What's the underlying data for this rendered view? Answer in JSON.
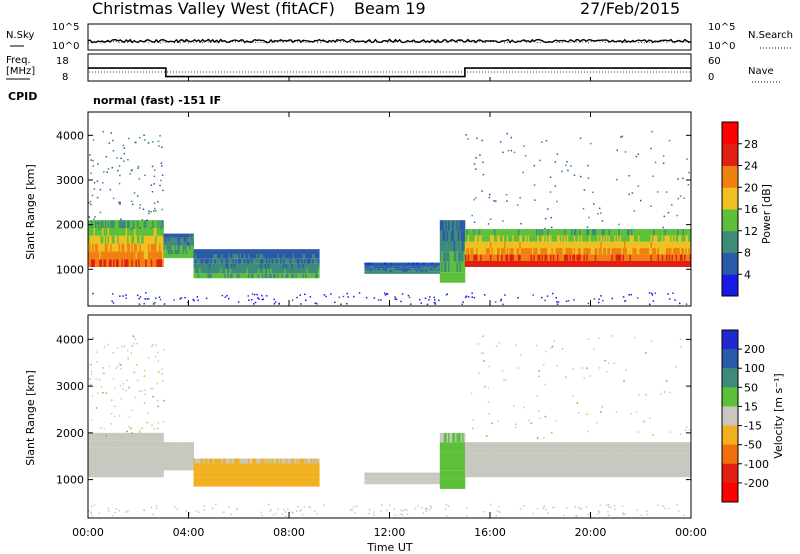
{
  "header": {
    "site": "Christmas Valley West (fitACF)",
    "beam": "Beam 19",
    "date": "27/Feb/2015"
  },
  "noise_panel": {
    "left_label": "N.Sky",
    "right_label": "N.Search",
    "left_ticks": [
      "10^5",
      "10^0"
    ],
    "right_ticks": [
      "10^5",
      "10^0"
    ]
  },
  "freq_panel": {
    "left_label_line1": "Freq.",
    "left_label_line2": "[MHz]",
    "right_label": "Nave",
    "left_ticks": [
      "18",
      "8"
    ],
    "right_ticks": [
      "60",
      "0"
    ]
  },
  "cpid": {
    "label": "CPID",
    "value": "normal (fast) -151 IF"
  },
  "power_panel": {
    "ylabel": "Slant Range [km]",
    "y_ticks": [
      "4000",
      "3000",
      "2000",
      "1000"
    ],
    "colorbar_label": "Power [dB]",
    "colorbar_ticks": [
      "28",
      "24",
      "20",
      "16",
      "12",
      "8",
      "4"
    ],
    "colors": [
      "#1a1ae6",
      "#2a5aa8",
      "#3f8b7a",
      "#5cc03a",
      "#f0c020",
      "#f08010",
      "#e02010",
      "#ff0000"
    ]
  },
  "velocity_panel": {
    "ylabel": "Slant Range [km]",
    "y_ticks": [
      "4000",
      "3000",
      "2000",
      "1000"
    ],
    "colorbar_label": "Velocity [m s⁻¹]",
    "colorbar_ticks": [
      "200",
      "100",
      "50",
      "15",
      "-15",
      "-50",
      "-100",
      "-200"
    ],
    "colors": [
      "#1e2ad0",
      "#2a5aa8",
      "#3f8b7a",
      "#5cc03a",
      "#c8c8c0",
      "#f0b020",
      "#f07010",
      "#e02010",
      "#ff0000"
    ]
  },
  "x_axis": {
    "label": "Time UT",
    "ticks": [
      "00:00",
      "04:00",
      "08:00",
      "12:00",
      "16:00",
      "20:00",
      "00:00"
    ]
  },
  "chart_data": {
    "type": "heatmap",
    "x_range_hours": [
      0,
      24
    ],
    "y_range_km": [
      200,
      4500
    ],
    "power_bands": [
      {
        "t0": 0.0,
        "t1": 3.0,
        "r_low": 1050,
        "r_high": 2100,
        "power": 24
      },
      {
        "t0": 3.0,
        "t1": 4.2,
        "r_low": 1250,
        "r_high": 1800,
        "power": 14
      },
      {
        "t0": 4.2,
        "t1": 9.2,
        "r_low": 800,
        "r_high": 1450,
        "power": 12
      },
      {
        "t0": 11.0,
        "t1": 14.0,
        "r_low": 900,
        "r_high": 1150,
        "power": 10
      },
      {
        "t0": 14.0,
        "t1": 15.0,
        "r_low": 700,
        "r_high": 2100,
        "power": 14
      },
      {
        "t0": 15.0,
        "t1": 24.0,
        "r_low": 1050,
        "r_high": 1900,
        "power": 26
      }
    ],
    "velocity_bands": [
      {
        "t0": 0.0,
        "t1": 3.0,
        "r_low": 1050,
        "r_high": 2000,
        "velocity": 0
      },
      {
        "t0": 3.0,
        "t1": 4.2,
        "r_low": 1200,
        "r_high": 1800,
        "velocity": 0
      },
      {
        "t0": 4.2,
        "t1": 9.2,
        "r_low": 850,
        "r_high": 1450,
        "velocity": -30
      },
      {
        "t0": 11.0,
        "t1": 14.0,
        "r_low": 900,
        "r_high": 1150,
        "velocity": 0
      },
      {
        "t0": 14.0,
        "t1": 15.0,
        "r_low": 800,
        "r_high": 2000,
        "velocity": 30
      },
      {
        "t0": 15.0,
        "t1": 24.0,
        "r_low": 1050,
        "r_high": 1800,
        "velocity": 0
      }
    ],
    "frequency_mhz": [
      {
        "t0": 0.0,
        "t1": 3.1,
        "value": 15
      },
      {
        "t0": 3.1,
        "t1": 15.0,
        "value": 10
      },
      {
        "t0": 15.0,
        "t1": 24.0,
        "value": 15
      }
    ]
  }
}
